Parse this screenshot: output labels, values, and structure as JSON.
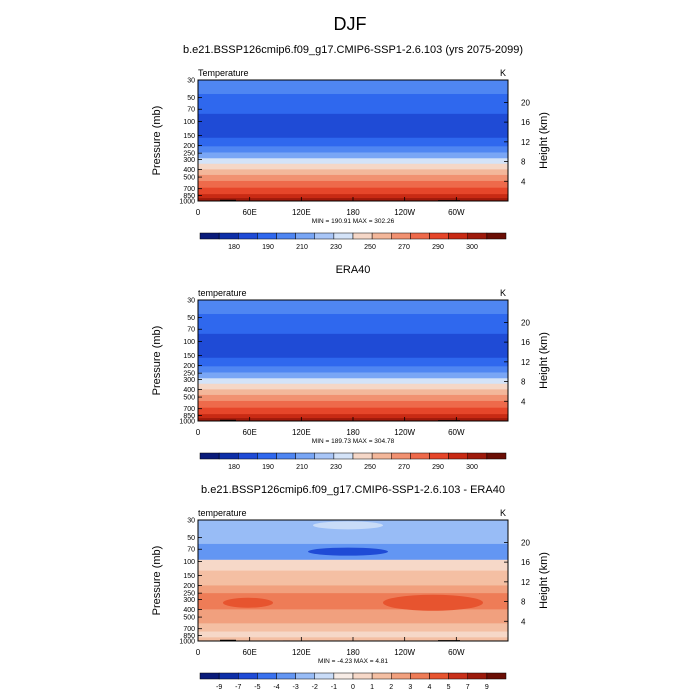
{
  "figure": {
    "title": "DJF"
  },
  "colors": {
    "abs_palette": [
      "#0a1b7a",
      "#0d2fa8",
      "#1f4bd6",
      "#2f68ee",
      "#4f86f2",
      "#79a6f5",
      "#a9c6f7",
      "#d4e3f8",
      "#f5d7c7",
      "#f3b79a",
      "#f19171",
      "#ee6a4b",
      "#e6462a",
      "#c82a14",
      "#9e1a0c",
      "#6b0f06"
    ],
    "diff_palette": [
      "#0a1b7a",
      "#0d2fa8",
      "#1f4bd6",
      "#3a72ef",
      "#6396f3",
      "#98bcf6",
      "#c9dcf8",
      "#f7ece6",
      "#f6d8c8",
      "#f4bfa3",
      "#f1a07e",
      "#ee7c57",
      "#e7542f",
      "#c9301a",
      "#9c1a0c",
      "#6b0f06"
    ]
  },
  "chart_data": [
    {
      "type": "contour",
      "title": "b.e21.BSSP126cmip6.f09_g17.CMIP6-SSP1-2.6.103 (yrs 2075-2099)",
      "left_label": "Temperature",
      "right_label": "K",
      "ylabel": "Pressure (mb)",
      "ylabel_right": "Height (km)",
      "xticks": [
        "0",
        "60E",
        "120E",
        "180",
        "120W",
        "60W"
      ],
      "yticks": [
        "30",
        "50",
        "70",
        "100",
        "150",
        "200",
        "250",
        "300",
        "400",
        "500",
        "700",
        "850",
        "1000"
      ],
      "height_ticks": [
        "20",
        "16",
        "12",
        "8",
        "4"
      ],
      "minmax": "MIN = 190.91  MAX = 302.26",
      "colorbar_labels": [
        "180",
        "190",
        "210",
        "230",
        "250",
        "270",
        "290",
        "300"
      ],
      "field": "abs"
    },
    {
      "type": "contour",
      "title": "ERA40",
      "left_label": "temperature",
      "right_label": "K",
      "ylabel": "Pressure (mb)",
      "ylabel_right": "Height (km)",
      "xticks": [
        "0",
        "60E",
        "120E",
        "180",
        "120W",
        "60W"
      ],
      "yticks": [
        "30",
        "50",
        "70",
        "100",
        "150",
        "200",
        "250",
        "300",
        "400",
        "500",
        "700",
        "850",
        "1000"
      ],
      "height_ticks": [
        "20",
        "16",
        "12",
        "8",
        "4"
      ],
      "minmax": "MIN = 189.73  MAX = 304.78",
      "colorbar_labels": [
        "180",
        "190",
        "210",
        "230",
        "250",
        "270",
        "290",
        "300"
      ],
      "field": "abs"
    },
    {
      "type": "contour",
      "title": "b.e21.BSSP126cmip6.f09_g17.CMIP6-SSP1-2.6.103 - ERA40",
      "left_label": "temperature",
      "right_label": "K",
      "ylabel": "Pressure (mb)",
      "ylabel_right": "Height (km)",
      "xticks": [
        "0",
        "60E",
        "120E",
        "180",
        "120W",
        "60W"
      ],
      "yticks": [
        "30",
        "50",
        "70",
        "100",
        "150",
        "200",
        "250",
        "300",
        "400",
        "500",
        "700",
        "850",
        "1000"
      ],
      "height_ticks": [
        "20",
        "16",
        "12",
        "8",
        "4"
      ],
      "minmax": "MIN =  -4.23  MAX =   4.81",
      "colorbar_labels": [
        "-9",
        "-7",
        "-5",
        "-4",
        "-3",
        "-2",
        "-1",
        "0",
        "1",
        "2",
        "3",
        "4",
        "5",
        "7",
        "9"
      ],
      "field": "diff"
    }
  ]
}
